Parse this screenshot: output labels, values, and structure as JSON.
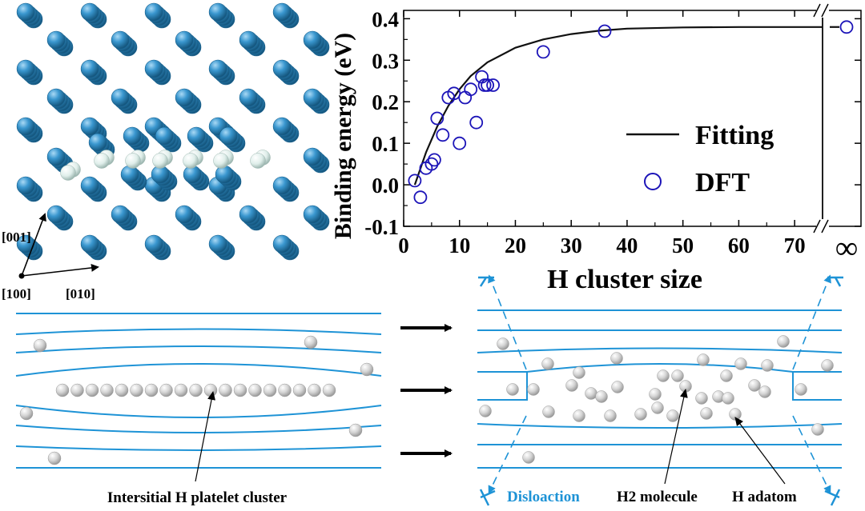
{
  "colors": {
    "atom_blue": "#2f86bf",
    "atom_blue_light": "#6cb7e6",
    "h_atom": "#d9ece8",
    "plane_line": "#1e93d6",
    "curve": "#111111",
    "dft_marker": "#1c14b8",
    "gray_ball": "#c4c4c4",
    "dislocation_text": "#1e93d6"
  },
  "lattice": {
    "axis_001": "[001]",
    "axis_100": "[100]",
    "axis_010": "[010]"
  },
  "chart_data": {
    "type": "scatter",
    "xlabel": "H cluster size",
    "ylabel": "Binding energy (eV)",
    "xlim": [
      0,
      75
    ],
    "ylim": [
      -0.1,
      0.42
    ],
    "x_ticks": [
      "0",
      "10",
      "20",
      "30",
      "40",
      "50",
      "60",
      "70"
    ],
    "y_ticks": [
      "-0.1",
      "0.0",
      "0.1",
      "0.2",
      "0.3",
      "0.4"
    ],
    "break_tick_label": "∞",
    "series": [
      {
        "name": "DFT",
        "marker": "open-circle",
        "points": [
          [
            2,
            0.01
          ],
          [
            3,
            -0.03
          ],
          [
            4,
            0.04
          ],
          [
            5,
            0.05
          ],
          [
            5.5,
            0.06
          ],
          [
            6,
            0.16
          ],
          [
            7,
            0.12
          ],
          [
            8,
            0.21
          ],
          [
            9,
            0.22
          ],
          [
            10,
            0.1
          ],
          [
            11,
            0.21
          ],
          [
            12,
            0.23
          ],
          [
            13,
            0.15
          ],
          [
            14,
            0.26
          ],
          [
            14.5,
            0.24
          ],
          [
            15,
            0.24
          ],
          [
            16,
            0.24
          ],
          [
            25,
            0.32
          ],
          [
            36,
            0.37
          ],
          [
            "inf",
            0.38
          ]
        ]
      },
      {
        "name": "Fitting",
        "marker": "line",
        "model": "0.38 * (1 - exp(-(n - 2) / 8.8))",
        "points": [
          [
            2,
            0.0
          ],
          [
            4,
            0.078
          ],
          [
            6,
            0.14
          ],
          [
            8,
            0.19
          ],
          [
            10,
            0.23
          ],
          [
            12,
            0.262
          ],
          [
            15,
            0.295
          ],
          [
            20,
            0.33
          ],
          [
            25,
            0.35
          ],
          [
            30,
            0.363
          ],
          [
            35,
            0.371
          ],
          [
            40,
            0.376
          ],
          [
            50,
            0.379
          ],
          [
            60,
            0.38
          ],
          [
            75,
            0.38
          ],
          [
            "inf",
            0.38
          ]
        ]
      }
    ],
    "legend": [
      "Fitting",
      "DFT"
    ]
  },
  "schematic": {
    "left_label": "Intersitial H platelet cluster",
    "right_labels": {
      "dislocation": "Disloaction",
      "h2": "H2 molecule",
      "adatom": "H adatom"
    }
  }
}
